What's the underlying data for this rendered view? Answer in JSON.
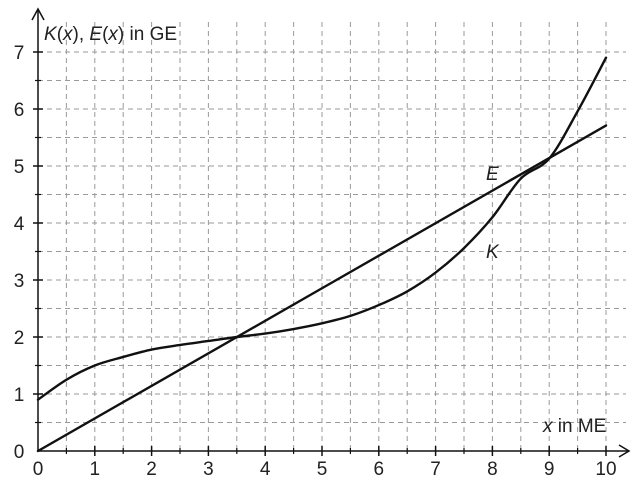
{
  "chart_data": {
    "type": "line",
    "ylabel_parts": [
      "K",
      "(",
      "x",
      "), ",
      "E",
      "(",
      "x",
      ") in GE"
    ],
    "xlabel_parts": [
      "x",
      " in ME"
    ],
    "xlim": [
      0,
      10
    ],
    "ylim": [
      0,
      7
    ],
    "grid": true,
    "grid_step_x": 0.5,
    "grid_step_y": 0.5,
    "x_ticks": [
      "0",
      "1",
      "2",
      "3",
      "4",
      "5",
      "6",
      "7",
      "8",
      "9",
      "10"
    ],
    "y_ticks": [
      "0",
      "1",
      "2",
      "3",
      "4",
      "5",
      "6",
      "7"
    ],
    "series": [
      {
        "name": "E",
        "label": "E",
        "x": [
          0,
          10
        ],
        "y": [
          0,
          5.71
        ]
      },
      {
        "name": "K",
        "label": "K",
        "x": [
          0,
          0.5,
          1,
          1.5,
          2,
          2.5,
          3,
          3.5,
          4,
          4.5,
          5,
          5.5,
          6,
          6.5,
          7,
          7.5,
          8,
          8.5,
          9,
          9.5,
          10
        ],
        "y": [
          0.9,
          1.25,
          1.5,
          1.65,
          1.78,
          1.86,
          1.93,
          2.0,
          2.06,
          2.14,
          2.24,
          2.37,
          2.56,
          2.8,
          3.13,
          3.56,
          4.1,
          4.78,
          5.13,
          5.96,
          6.9
        ]
      }
    ],
    "colors": {
      "curve": "#111111",
      "grid": "#9a9a9a",
      "axis": "#111111"
    }
  }
}
